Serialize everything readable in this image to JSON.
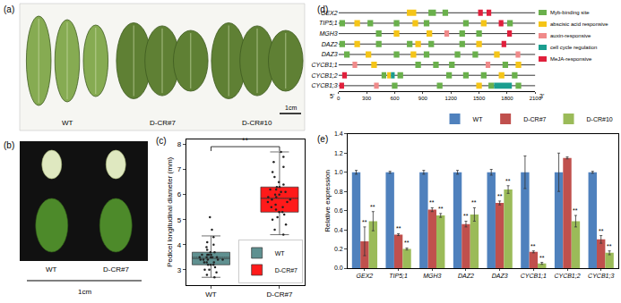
{
  "chart_data": [
    {
      "panel": "(a)",
      "type": "photo",
      "labels": [
        "WT",
        "D-CR#7",
        "D-CR#10"
      ],
      "scale_bar": "1cm"
    },
    {
      "panel": "(b)",
      "type": "photo",
      "labels": [
        "WT",
        "D-CR#7"
      ],
      "scale_bar": "1cm"
    },
    {
      "panel": "(c)",
      "type": "box",
      "y_label": "Pedicel longitudinal diameter (mm)",
      "ylim": [
        2.4,
        8.2
      ],
      "yticks": [
        3,
        4,
        5,
        6,
        7,
        8
      ],
      "legend": "lower right",
      "series": [
        {
          "name": "WT",
          "color": "#5f9090",
          "q1": 3.2,
          "median": 3.45,
          "q3": 3.7,
          "lowerfence": 2.7,
          "upperfence": 4.35,
          "mean": 3.5,
          "values": [
            3.0,
            3.1,
            3.2,
            3.2,
            3.3,
            3.3,
            3.3,
            3.4,
            3.4,
            3.4,
            3.4,
            3.5,
            3.5,
            3.5,
            3.5,
            3.6,
            3.6,
            3.6,
            3.7,
            3.7,
            3.8,
            3.9,
            4.0,
            4.1,
            4.3,
            2.7,
            2.8,
            2.9,
            4.6,
            5.1,
            3.0,
            3.2,
            3.4,
            3.5,
            3.6
          ]
        },
        {
          "name": "D-CR#7",
          "color": "#ff1a1a",
          "q1": 5.3,
          "median": 5.85,
          "q3": 6.3,
          "lowerfence": 4.4,
          "upperfence": 7.7,
          "mean": 5.85,
          "values": [
            4.4,
            4.6,
            4.8,
            5.0,
            5.1,
            5.2,
            5.3,
            5.3,
            5.4,
            5.5,
            5.6,
            5.7,
            5.8,
            5.8,
            5.9,
            5.9,
            6.0,
            6.0,
            6.1,
            6.2,
            6.2,
            6.3,
            6.3,
            6.5,
            6.7,
            6.9,
            7.1,
            7.3,
            7.5,
            7.7,
            5.5,
            5.7,
            6.1,
            6.4
          ]
        }
      ],
      "significance": {
        "between": [
          "WT",
          "D-CR#7"
        ],
        "label": "**"
      }
    },
    {
      "panel": "(d)",
      "type": "motif_map",
      "xlim": [
        0,
        2100
      ],
      "xticks": [
        0,
        300,
        600,
        900,
        1200,
        1500,
        1800,
        2100
      ],
      "ends": [
        "5'",
        "3'"
      ],
      "motif_types": [
        {
          "name": "Myb-binding site",
          "color": "#6ab04c"
        },
        {
          "name": "abscisic acid responsive",
          "color": "#f5c518"
        },
        {
          "name": "auxin-responsive",
          "color": "#f08a8a"
        },
        {
          "name": "cell cycle regulation",
          "color": "#1a9e8f"
        },
        {
          "name": "MeJA-responsive",
          "color": "#e0203c"
        }
      ],
      "genes": [
        {
          "name": "GEX2",
          "motifs": [
            [
              730,
              830,
              "abscisic acid responsive"
            ],
            [
              960,
              1040,
              "Myb-binding site"
            ],
            [
              1110,
              1170,
              "Myb-binding site"
            ],
            [
              1490,
              1540,
              "MeJA-responsive"
            ],
            [
              1580,
              1630,
              "MeJA-responsive"
            ]
          ]
        },
        {
          "name": "TIP5;1",
          "motifs": [
            [
              10,
              70,
              "Myb-binding site"
            ],
            [
              170,
              230,
              "abscisic acid responsive"
            ],
            [
              310,
              370,
              "Myb-binding site"
            ],
            [
              590,
              650,
              "Myb-binding site"
            ],
            [
              790,
              850,
              "abscisic acid responsive"
            ],
            [
              910,
              970,
              "Myb-binding site"
            ],
            [
              1330,
              1390,
              "Myb-binding site"
            ],
            [
              1520,
              1580,
              "abscisic acid responsive"
            ],
            [
              1710,
              1760,
              "MeJA-responsive"
            ],
            [
              1800,
              1860,
              "Myb-binding site"
            ]
          ]
        },
        {
          "name": "MGH3",
          "motifs": [
            [
              400,
              460,
              "Myb-binding site"
            ],
            [
              590,
              650,
              "abscisic acid responsive"
            ],
            [
              940,
              1000,
              "abscisic acid responsive"
            ],
            [
              1130,
              1180,
              "auxin-responsive"
            ],
            [
              1290,
              1350,
              "Myb-binding site"
            ],
            [
              1470,
              1530,
              "Myb-binding site"
            ],
            [
              1800,
              1850,
              "MeJA-responsive"
            ]
          ]
        },
        {
          "name": "DAZ2",
          "motifs": [
            [
              10,
              70,
              "Myb-binding site"
            ],
            [
              170,
              230,
              "abscisic acid responsive"
            ],
            [
              400,
              460,
              "Myb-binding site"
            ],
            [
              730,
              790,
              "Myb-binding site"
            ],
            [
              820,
              880,
              "abscisic acid responsive"
            ],
            [
              960,
              1020,
              "Myb-binding site"
            ],
            [
              1290,
              1350,
              "Myb-binding site"
            ],
            [
              1470,
              1530,
              "abscisic acid responsive"
            ],
            [
              1740,
              1790,
              "MeJA-responsive"
            ]
          ]
        },
        {
          "name": "DAZ3",
          "motifs": [
            [
              60,
              120,
              "Myb-binding site"
            ],
            [
              290,
              350,
              "abscisic acid responsive"
            ],
            [
              590,
              650,
              "Myb-binding site"
            ],
            [
              770,
              830,
              "abscisic acid responsive"
            ],
            [
              910,
              970,
              "Myb-binding site"
            ],
            [
              1240,
              1300,
              "Myb-binding site"
            ],
            [
              1430,
              1490,
              "Myb-binding site"
            ],
            [
              1660,
              1720,
              "abscisic acid responsive"
            ],
            [
              1890,
              1940,
              "auxin-responsive"
            ]
          ]
        },
        {
          "name": "CYCB1;1",
          "motifs": [
            [
              150,
              200,
              "auxin-responsive"
            ],
            [
              350,
              410,
              "abscisic acid responsive"
            ],
            [
              820,
              880,
              "Myb-binding site"
            ],
            [
              1010,
              1070,
              "Myb-binding site"
            ],
            [
              1180,
              1240,
              "Myb-binding site"
            ],
            [
              1570,
              1620,
              "auxin-responsive"
            ],
            [
              1750,
              1810,
              "Myb-binding site"
            ],
            [
              1890,
              1950,
              "abscisic acid responsive"
            ]
          ]
        },
        {
          "name": "CYCB1;2",
          "motifs": [
            [
              40,
              90,
              "MeJA-responsive"
            ],
            [
              460,
              510,
              "Myb-binding site"
            ],
            [
              520,
              560,
              "abscisic acid responsive"
            ],
            [
              560,
              600,
              "cell cycle regulation"
            ],
            [
              630,
              690,
              "Myb-binding site"
            ],
            [
              1150,
              1210,
              "Myb-binding site"
            ],
            [
              1330,
              1390,
              "Myb-binding site"
            ],
            [
              1520,
              1580,
              "Myb-binding site"
            ],
            [
              1710,
              1770,
              "abscisic acid responsive"
            ],
            [
              1850,
              1910,
              "Myb-binding site"
            ]
          ]
        },
        {
          "name": "CYCB1;3",
          "motifs": [
            [
              10,
              60,
              "MeJA-responsive"
            ],
            [
              380,
              430,
              "auxin-responsive"
            ],
            [
              570,
              630,
              "Myb-binding site"
            ],
            [
              1050,
              1110,
              "Myb-binding site"
            ],
            [
              1470,
              1530,
              "abscisic acid responsive"
            ],
            [
              1600,
              1660,
              "Myb-binding site"
            ],
            [
              1660,
              1850,
              "cell cycle regulation"
            ],
            [
              1890,
              1950,
              "Myb-binding site"
            ]
          ]
        }
      ]
    },
    {
      "panel": "(e)",
      "type": "bar",
      "y_label": "Relative expression",
      "categories": [
        "GEX2",
        "TIP5;1",
        "MGH3",
        "DAZ2",
        "DAZ3",
        "CYCB1;1",
        "CYCB1;2",
        "CYCB1;3"
      ],
      "ylim": [
        0,
        1.4
      ],
      "yticks": [
        {
          "value": 0,
          "label": "0.0"
        },
        {
          "value": 0.2,
          "label": "0.2"
        },
        {
          "value": 0.4,
          "label": "0.4"
        },
        {
          "value": 0.6,
          "label": "0.6"
        },
        {
          "value": 0.8,
          "label": "0.8"
        },
        {
          "value": 1,
          "label": "1.0"
        },
        {
          "value": 1.2,
          "label": "1.2"
        },
        {
          "value": 1.4,
          "label": "1.4"
        }
      ],
      "legend": "upper right",
      "series": [
        {
          "name": "WT",
          "color": "#4f81bd",
          "values": [
            1,
            1,
            1,
            1,
            1,
            1,
            1,
            1
          ],
          "errors": [
            0.02,
            0.01,
            0.02,
            0.02,
            0.03,
            0.17,
            0.2,
            0.01
          ]
        },
        {
          "name": "D-CR#7",
          "color": "#c0504d",
          "values": [
            0.28,
            0.35,
            0.61,
            0.46,
            0.68,
            0.17,
            1.15,
            0.3
          ],
          "errors": [
            0.15,
            0.01,
            0.02,
            0.03,
            0.02,
            0.01,
            0.01,
            0.04
          ],
          "significance": [
            "**",
            "**",
            "**",
            "**",
            "**",
            "**",
            null,
            "**"
          ]
        },
        {
          "name": "D-CR#10",
          "color": "#9bbb59",
          "values": [
            0.49,
            0.2,
            0.55,
            0.56,
            0.82,
            0.05,
            0.49,
            0.16
          ],
          "errors": [
            0.1,
            0.01,
            0.02,
            0.07,
            0.04,
            0.01,
            0.06,
            0.02
          ],
          "significance": [
            "**",
            "**",
            "**",
            "**",
            "**",
            "**",
            "**",
            "**"
          ]
        }
      ]
    }
  ]
}
